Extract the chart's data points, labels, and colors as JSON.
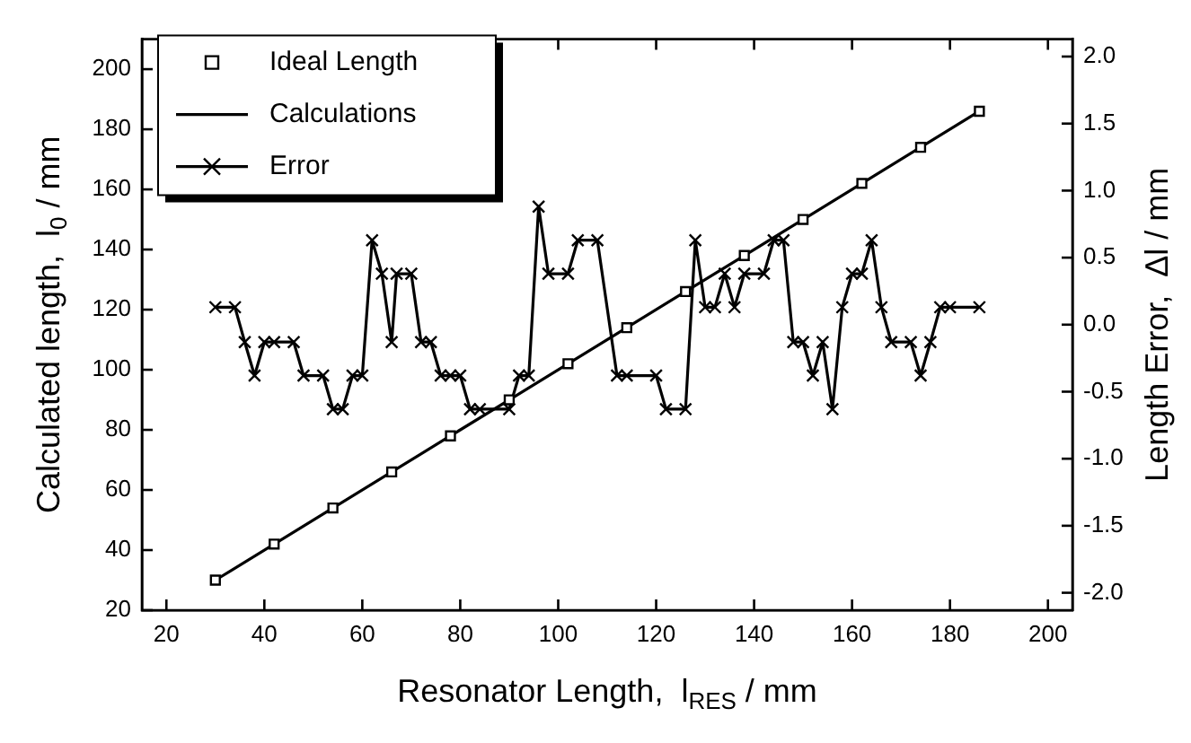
{
  "chart_data": {
    "type": "line",
    "xlabel": "Resonator Length,  l$_{RES}$ / mm",
    "ylabel": "Calculated length,  l$_{0}$ / mm",
    "y2label": "Length Error,  Δl / mm",
    "xlim": [
      15,
      205
    ],
    "xticks": [
      20,
      40,
      60,
      80,
      100,
      120,
      140,
      160,
      180,
      200
    ],
    "ylim": [
      20,
      210
    ],
    "yticks": [
      20,
      40,
      60,
      80,
      100,
      120,
      140,
      160,
      180,
      200
    ],
    "y2lim": [
      -2.13,
      2.13
    ],
    "y2ticks": [
      {
        "value": -2,
        "label": "-2.0"
      },
      {
        "value": -1.5,
        "label": "-1.5"
      },
      {
        "value": -1,
        "label": "-1.0"
      },
      {
        "value": -0.5,
        "label": "-0.5"
      },
      {
        "value": 0,
        "label": "0.0"
      },
      {
        "value": 0.5,
        "label": "0.5"
      },
      {
        "value": 1,
        "label": "1.0"
      },
      {
        "value": 1.5,
        "label": "1.5"
      },
      {
        "value": 2,
        "label": "2.0"
      }
    ],
    "legend": "top left",
    "grid": false,
    "series": [
      {
        "name": "Ideal Length",
        "type": "scatter",
        "marker": "square",
        "color": "#000000",
        "x": [
          30,
          42,
          54,
          66,
          78,
          90,
          102,
          114,
          126,
          138,
          150,
          162,
          174,
          186
        ],
        "values": [
          30,
          42,
          54,
          66,
          78,
          90,
          102,
          114,
          126,
          138,
          150,
          162,
          174,
          186
        ]
      },
      {
        "name": "Calculations",
        "type": "line",
        "marker": "none",
        "color": "#000000",
        "x": [
          30,
          42,
          54,
          66,
          78,
          90,
          102,
          114,
          126,
          138,
          150,
          162,
          174,
          186
        ],
        "values": [
          30,
          42,
          54,
          66,
          78,
          90,
          102,
          114,
          126,
          138,
          150,
          162,
          174,
          186
        ]
      },
      {
        "name": "Error",
        "type": "line",
        "marker": "cross",
        "axis": "y2",
        "color": "#000000",
        "x": [
          30,
          34,
          36,
          38,
          40,
          42,
          46,
          48,
          52,
          54,
          56,
          58,
          60,
          62,
          64,
          66,
          67,
          70,
          72,
          74,
          76,
          78,
          80,
          82,
          84,
          90,
          92,
          94,
          96,
          98,
          102,
          104,
          108,
          112,
          114,
          120,
          122,
          126,
          128,
          130,
          132,
          134,
          136,
          138,
          142,
          144,
          146,
          148,
          150,
          152,
          154,
          156,
          158,
          160,
          162,
          164,
          166,
          168,
          172,
          174,
          176,
          178,
          180,
          186
        ],
        "values": [
          0.13,
          0.13,
          -0.13,
          -0.38,
          -0.13,
          -0.13,
          -0.13,
          -0.38,
          -0.38,
          -0.63,
          -0.63,
          -0.38,
          -0.38,
          0.63,
          0.38,
          -0.13,
          0.38,
          0.38,
          -0.13,
          -0.13,
          -0.38,
          -0.38,
          -0.38,
          -0.63,
          -0.63,
          -0.63,
          -0.38,
          -0.38,
          0.88,
          0.38,
          0.38,
          0.63,
          0.63,
          -0.38,
          -0.38,
          -0.38,
          -0.63,
          -0.63,
          0.63,
          0.13,
          0.13,
          0.38,
          0.13,
          0.38,
          0.38,
          0.63,
          0.63,
          -0.13,
          -0.13,
          -0.38,
          -0.13,
          -0.63,
          0.13,
          0.38,
          0.38,
          0.63,
          0.13,
          -0.13,
          -0.13,
          -0.38,
          -0.13,
          0.13,
          0.13,
          0.13
        ]
      }
    ]
  }
}
